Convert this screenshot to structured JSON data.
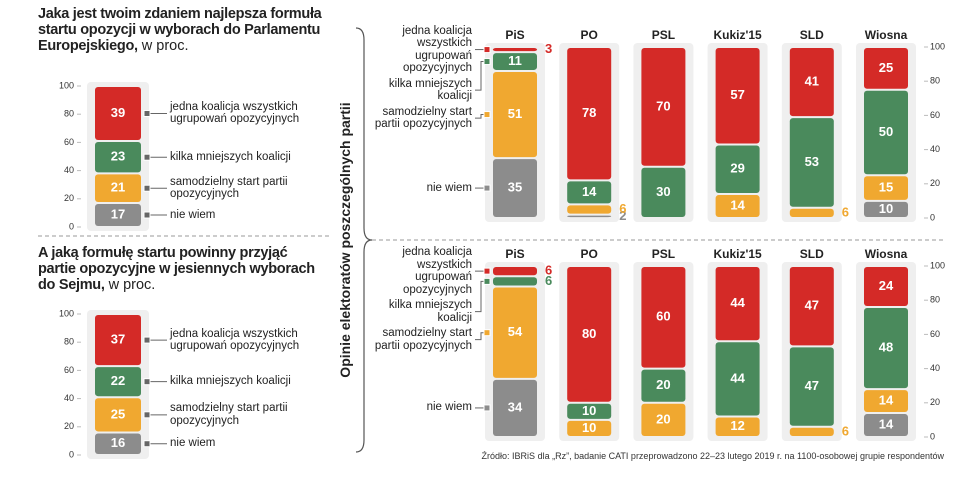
{
  "side_label": "Opinie elektoratów poszczególnych partii",
  "source": "Źródło: IBRiS dla „Rz”, badanie CATI przeprowadzono 22–23 lutego 2019 r. na 1100-osobowej grupie respondentów",
  "chart_data": [
    {
      "type": "stacked_bar",
      "title": "Jaka jest twoim zdaniem najlepsza formuła startu opozycji w wyborach do Parlamentu Europejskiego,",
      "unit": "w proc.",
      "series": [
        {
          "name": "jedna koalicja wszystkich ugrupowań opozycyjnych",
          "color": "#d42a27",
          "values": [
            39
          ]
        },
        {
          "name": "kilka mniejszych koalicji",
          "color": "#4a8a5c",
          "values": [
            23
          ]
        },
        {
          "name": "samodzielny start partii opozycyjnych",
          "color": "#f0a830",
          "values": [
            21
          ]
        },
        {
          "name": "nie wiem",
          "color": "#8c8c8c",
          "values": [
            17
          ]
        }
      ],
      "ylim": [
        0,
        100
      ],
      "yticks": [
        0,
        20,
        40,
        60,
        80,
        100
      ]
    },
    {
      "type": "stacked_bar",
      "title": "A jaką formułę startu powinny przyjąć partie opozycyjne w jesiennych wyborach do Sejmu,",
      "unit": "w proc.",
      "series": [
        {
          "name": "jedna koalicja wszystkich ugrupowań opozycyjnych",
          "color": "#d42a27",
          "values": [
            37
          ]
        },
        {
          "name": "kilka mniejszych koalicji",
          "color": "#4a8a5c",
          "values": [
            22
          ]
        },
        {
          "name": "samodzielny start partii opozycyjnych",
          "color": "#f0a830",
          "values": [
            25
          ]
        },
        {
          "name": "nie wiem",
          "color": "#8c8c8c",
          "values": [
            16
          ]
        }
      ],
      "ylim": [
        0,
        100
      ],
      "yticks": [
        0,
        20,
        40,
        60,
        80,
        100
      ]
    },
    {
      "type": "stacked_bar",
      "categories": [
        "PiS",
        "PO",
        "PSL",
        "Kukiz'15",
        "SLD",
        "Wiosna"
      ],
      "series": [
        {
          "name": "jedna koalicja wszystkich ugrupowań opozycyjnych",
          "color": "#d42a27",
          "values": [
            3,
            78,
            70,
            57,
            41,
            25
          ]
        },
        {
          "name": "kilka mniejszych koalicji",
          "color": "#4a8a5c",
          "values": [
            11,
            14,
            30,
            29,
            53,
            50
          ]
        },
        {
          "name": "samodzielny start partii opozycyjnych",
          "color": "#f0a830",
          "values": [
            51,
            6,
            null,
            14,
            6,
            15
          ]
        },
        {
          "name": "nie wiem",
          "color": "#8c8c8c",
          "values": [
            35,
            2,
            null,
            null,
            null,
            10
          ]
        }
      ],
      "ylim": [
        0,
        100
      ],
      "yticks": [
        0,
        20,
        40,
        60,
        80,
        100
      ]
    },
    {
      "type": "stacked_bar",
      "categories": [
        "PiS",
        "PO",
        "PSL",
        "Kukiz'15",
        "SLD",
        "Wiosna"
      ],
      "series": [
        {
          "name": "jedna koalicja wszystkich ugrupowań opozycyjnych",
          "color": "#d42a27",
          "values": [
            6,
            80,
            60,
            44,
            47,
            24
          ]
        },
        {
          "name": "kilka mniejszych koalicji",
          "color": "#4a8a5c",
          "values": [
            6,
            10,
            20,
            44,
            47,
            48
          ]
        },
        {
          "name": "samodzielny start partii opozycyjnych",
          "color": "#f0a830",
          "values": [
            54,
            10,
            20,
            12,
            6,
            14
          ]
        },
        {
          "name": "nie wiem",
          "color": "#8c8c8c",
          "values": [
            34,
            null,
            null,
            null,
            null,
            14
          ]
        }
      ],
      "ylim": [
        0,
        100
      ],
      "yticks": [
        0,
        20,
        40,
        60,
        80,
        100
      ]
    }
  ]
}
